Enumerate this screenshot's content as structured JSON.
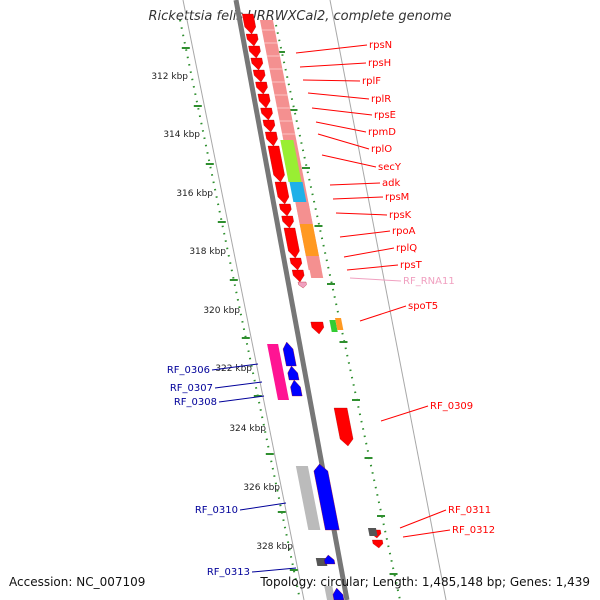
{
  "title": "Rickettsia felis URRWXCal2, complete genome",
  "accession": "Accession: NC_007109",
  "summary": "Topology: circular; Length: 1,485,148 bp; Genes: 1,439",
  "colors": {
    "forward": "#ff0000",
    "pale": "#f08080",
    "pink_rna": "#f0a0c0",
    "blue": "#0000ff",
    "navy_label": "#000099",
    "magenta": "#ff1493",
    "green": "#99ee33",
    "cyan": "#1fb0e8",
    "orange": "#ff9922",
    "grey": "#bbbbbb",
    "dark_grey": "#555555",
    "scale_green": "#2f8f2f"
  },
  "scale_labels": [
    "312 kbp",
    "314 kbp",
    "316 kbp",
    "318 kbp",
    "320 kbp",
    "322 kbp",
    "324 kbp",
    "326 kbp",
    "328 kbp"
  ],
  "right_labels": [
    {
      "text": "rpsN",
      "color": "red"
    },
    {
      "text": "rpsH",
      "color": "red"
    },
    {
      "text": "rplF",
      "color": "red"
    },
    {
      "text": "rplR",
      "color": "red"
    },
    {
      "text": "rpsE",
      "color": "red"
    },
    {
      "text": "rpmD",
      "color": "red"
    },
    {
      "text": "rplO",
      "color": "red"
    },
    {
      "text": "secY",
      "color": "red"
    },
    {
      "text": "adk",
      "color": "red"
    },
    {
      "text": "rpsM",
      "color": "red"
    },
    {
      "text": "rpsK",
      "color": "red"
    },
    {
      "text": "rpoA",
      "color": "red"
    },
    {
      "text": "rplQ",
      "color": "red"
    },
    {
      "text": "rpsT",
      "color": "red"
    },
    {
      "text": "RF_RNA11",
      "color": "pink"
    },
    {
      "text": "spoT5",
      "color": "red"
    },
    {
      "text": "RF_0309",
      "color": "red"
    },
    {
      "text": "RF_0311",
      "color": "red"
    },
    {
      "text": "RF_0312",
      "color": "red"
    }
  ],
  "left_labels": [
    {
      "text": "RF_0306"
    },
    {
      "text": "RF_0307"
    },
    {
      "text": "RF_0308"
    },
    {
      "text": "RF_0310"
    },
    {
      "text": "RF_0313"
    }
  ]
}
